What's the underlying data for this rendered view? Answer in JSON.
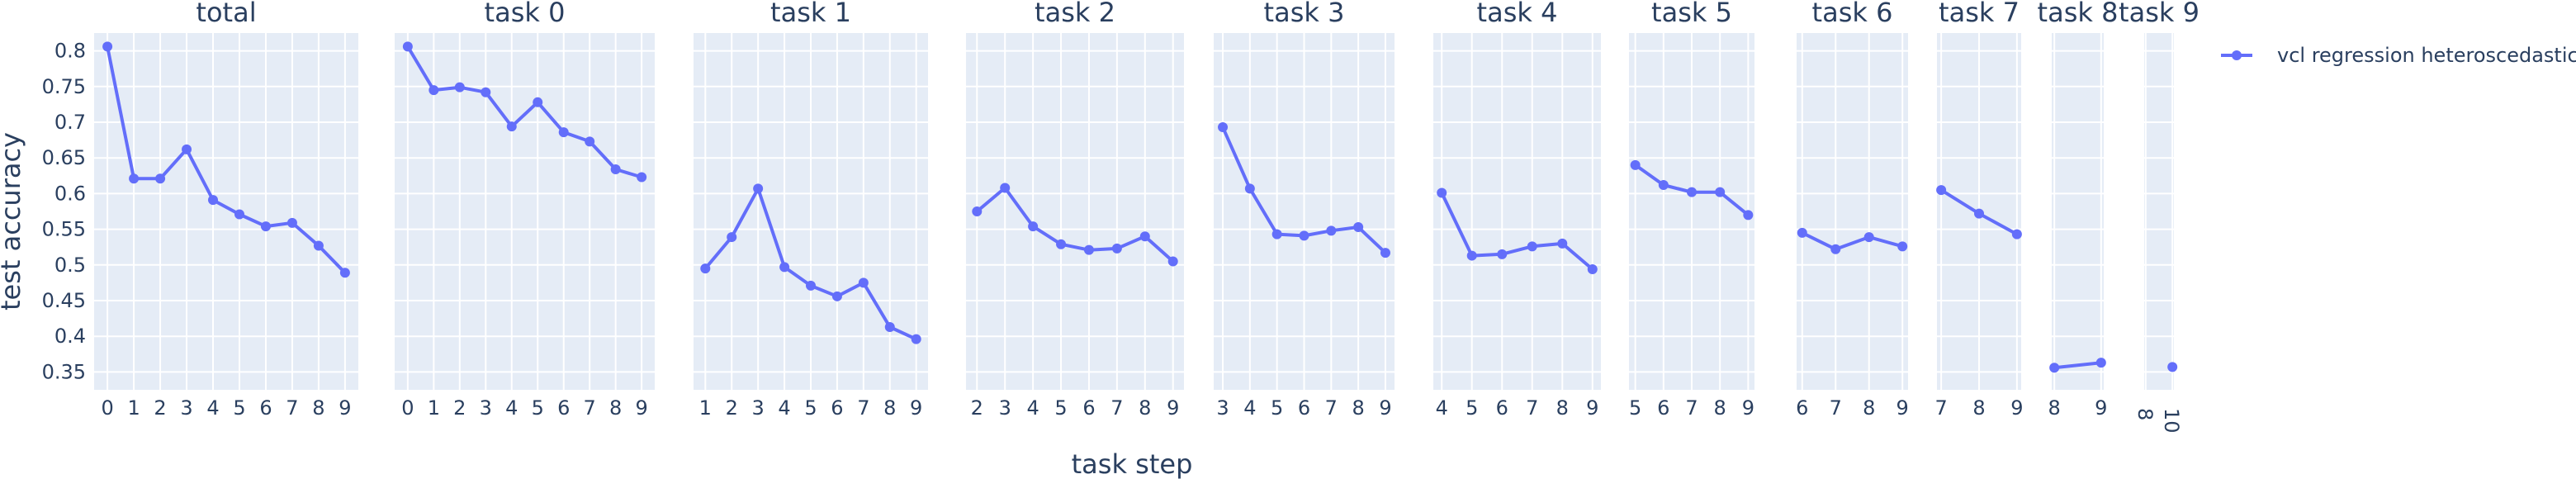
{
  "chart_data": {
    "type": "line",
    "xlabel": "task step",
    "ylabel": "test accuracy",
    "ylim": [
      0.325,
      0.825
    ],
    "yticks": [
      0.35,
      0.4,
      0.45,
      0.5,
      0.55,
      0.6,
      0.65,
      0.7,
      0.75,
      0.8
    ],
    "ytick_labels": [
      "0.35",
      "0.4",
      "0.45",
      "0.5",
      "0.55",
      "0.6",
      "0.65",
      "0.7",
      "0.75",
      "0.8"
    ],
    "grid": true,
    "legend_position": "top-right",
    "series_color": "#636EFA",
    "legend": [
      "vcl regression heteroscedastic"
    ],
    "panels": [
      {
        "title": "total",
        "x": [
          0,
          1,
          2,
          3,
          4,
          5,
          6,
          7,
          8,
          9
        ],
        "y": [
          0.806,
          0.621,
          0.621,
          0.662,
          0.591,
          0.571,
          0.554,
          0.559,
          0.527,
          0.489
        ]
      },
      {
        "title": "task 0",
        "x": [
          0,
          1,
          2,
          3,
          4,
          5,
          6,
          7,
          8,
          9
        ],
        "y": [
          0.806,
          0.745,
          0.749,
          0.742,
          0.694,
          0.728,
          0.686,
          0.673,
          0.634,
          0.623
        ]
      },
      {
        "title": "task 1",
        "x": [
          1,
          2,
          3,
          4,
          5,
          6,
          7,
          8,
          9
        ],
        "y": [
          0.495,
          0.539,
          0.607,
          0.497,
          0.471,
          0.456,
          0.475,
          0.413,
          0.396
        ]
      },
      {
        "title": "task 2",
        "x": [
          2,
          3,
          4,
          5,
          6,
          7,
          8,
          9
        ],
        "y": [
          0.575,
          0.608,
          0.554,
          0.529,
          0.521,
          0.523,
          0.54,
          0.505
        ]
      },
      {
        "title": "task 3",
        "x": [
          3,
          4,
          5,
          6,
          7,
          8,
          9
        ],
        "y": [
          0.693,
          0.607,
          0.543,
          0.541,
          0.548,
          0.553,
          0.517
        ]
      },
      {
        "title": "task 4",
        "x": [
          4,
          5,
          6,
          7,
          8,
          9
        ],
        "y": [
          0.601,
          0.513,
          0.515,
          0.526,
          0.53,
          0.494
        ]
      },
      {
        "title": "task 5",
        "x": [
          5,
          6,
          7,
          8,
          9
        ],
        "y": [
          0.64,
          0.612,
          0.602,
          0.602,
          0.57
        ]
      },
      {
        "title": "task 6",
        "x": [
          6,
          7,
          8,
          9
        ],
        "y": [
          0.545,
          0.522,
          0.539,
          0.526
        ]
      },
      {
        "title": "task 7",
        "x": [
          7,
          8,
          9
        ],
        "y": [
          0.605,
          0.572,
          0.543
        ]
      },
      {
        "title": "task 8",
        "x": [
          8,
          9
        ],
        "y": [
          0.356,
          0.363
        ]
      },
      {
        "title": "task 9",
        "x": [
          10
        ],
        "y": [
          0.357
        ],
        "xticks": [
          8,
          10
        ]
      }
    ]
  }
}
